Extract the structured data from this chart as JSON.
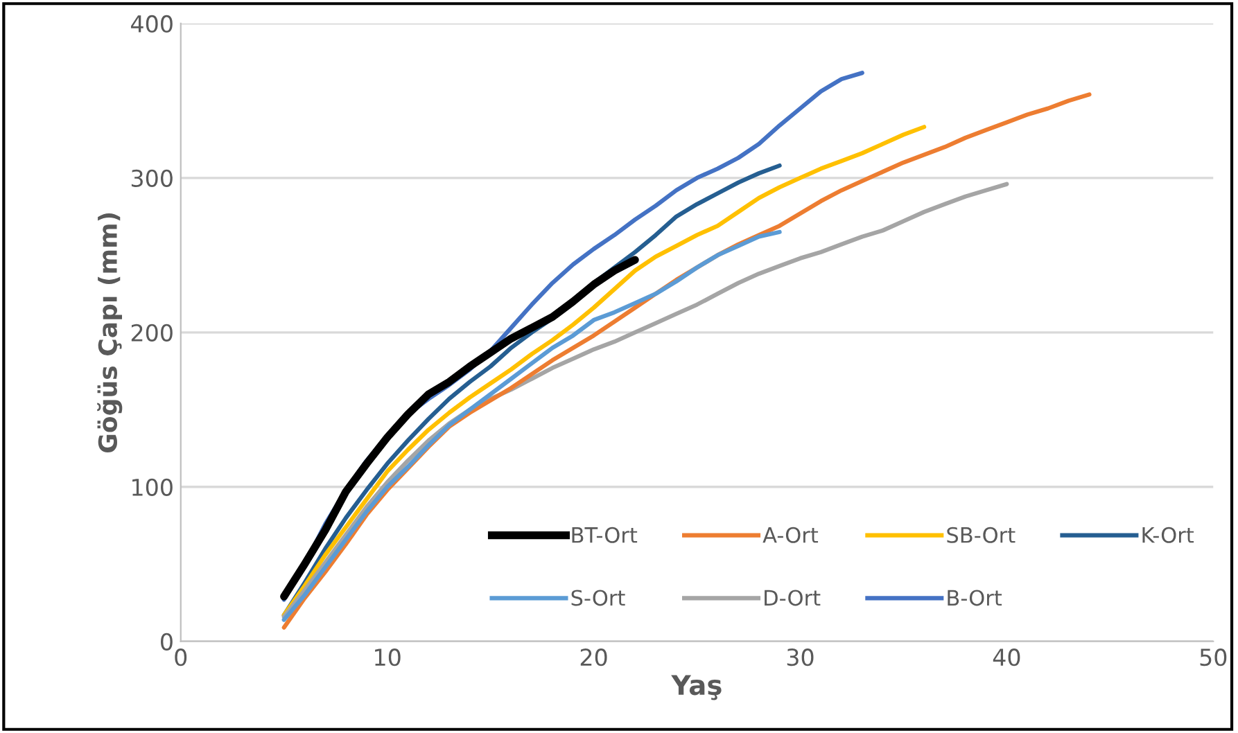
{
  "chart_data": {
    "type": "line",
    "xlabel": "Yaş",
    "ylabel": "Göğüs Çapı (mm)",
    "xlim": [
      0,
      50
    ],
    "ylim": [
      0,
      400
    ],
    "xticks": [
      0,
      10,
      20,
      30,
      40,
      50
    ],
    "yticks": [
      0,
      100,
      200,
      300,
      400
    ],
    "grid": "y",
    "legend": "bottom right",
    "marker": "none",
    "line_style": "solid",
    "series": [
      {
        "name": "BT-Ort",
        "color": "#000000",
        "x": [
          5,
          6,
          7,
          8,
          9,
          10,
          11,
          12,
          13,
          14,
          15,
          16,
          17,
          18,
          19,
          20,
          21,
          22
        ],
        "values": [
          29,
          50,
          72,
          97,
          115,
          132,
          147,
          160,
          168,
          178,
          187,
          196,
          203,
          210,
          220,
          231,
          240,
          247
        ]
      },
      {
        "name": "S-Ort",
        "color": "#5b9bd5",
        "x": [
          5,
          6,
          7,
          8,
          9,
          10,
          11,
          12,
          13,
          14,
          15,
          16,
          17,
          18,
          19,
          20,
          21,
          22,
          23,
          24,
          25,
          26,
          27,
          28,
          29
        ],
        "values": [
          14,
          30,
          48,
          66,
          84,
          100,
          113,
          127,
          140,
          150,
          160,
          170,
          180,
          190,
          198,
          208,
          213,
          219,
          225,
          233,
          242,
          250,
          256,
          262,
          265
        ]
      },
      {
        "name": "A-Ort",
        "color": "#ed7d31",
        "x": [
          5,
          6,
          7,
          8,
          9,
          10,
          11,
          12,
          13,
          14,
          15,
          16,
          17,
          18,
          19,
          20,
          21,
          22,
          23,
          24,
          25,
          26,
          27,
          28,
          29,
          30,
          31,
          32,
          33,
          34,
          35,
          36,
          37,
          38,
          39,
          40,
          41,
          42,
          43,
          44
        ],
        "values": [
          9,
          28,
          45,
          63,
          82,
          98,
          112,
          126,
          139,
          148,
          156,
          164,
          173,
          182,
          190,
          198,
          207,
          216,
          225,
          234,
          242,
          250,
          257,
          263,
          269,
          277,
          285,
          292,
          298,
          304,
          310,
          315,
          320,
          326,
          331,
          336,
          341,
          345,
          350,
          354
        ]
      },
      {
        "name": "D-Ort",
        "color": "#a5a5a5",
        "x": [
          5,
          6,
          7,
          8,
          9,
          10,
          11,
          12,
          13,
          14,
          15,
          16,
          17,
          18,
          19,
          20,
          21,
          22,
          23,
          24,
          25,
          26,
          27,
          28,
          29,
          30,
          31,
          32,
          33,
          34,
          35,
          36,
          37,
          38,
          39,
          40
        ],
        "values": [
          16,
          33,
          51,
          69,
          87,
          103,
          117,
          130,
          141,
          150,
          157,
          163,
          170,
          177,
          183,
          189,
          194,
          200,
          206,
          212,
          218,
          225,
          232,
          238,
          243,
          248,
          252,
          257,
          262,
          266,
          272,
          278,
          283,
          288,
          292,
          296
        ]
      },
      {
        "name": "SB-Ort",
        "color": "#ffc000",
        "x": [
          5,
          6,
          7,
          8,
          9,
          10,
          11,
          12,
          13,
          14,
          15,
          16,
          17,
          18,
          19,
          20,
          21,
          22,
          23,
          24,
          25,
          26,
          27,
          28,
          29,
          30,
          31,
          32,
          33,
          34,
          35,
          36
        ],
        "values": [
          17,
          36,
          56,
          74,
          92,
          110,
          124,
          137,
          148,
          158,
          167,
          176,
          186,
          195,
          205,
          216,
          228,
          240,
          249,
          256,
          263,
          269,
          278,
          287,
          294,
          300,
          306,
          311,
          316,
          322,
          328,
          333
        ]
      },
      {
        "name": "B-Ort",
        "color": "#4472c4",
        "x": [
          5,
          6,
          7,
          8,
          9,
          10,
          11,
          12,
          13,
          14,
          15,
          16,
          17,
          18,
          19,
          20,
          21,
          22,
          23,
          24,
          25,
          26,
          27,
          28,
          29,
          30,
          31,
          32,
          33
        ],
        "values": [
          27,
          50,
          76,
          98,
          117,
          133,
          147,
          157,
          166,
          176,
          188,
          203,
          218,
          232,
          244,
          254,
          263,
          273,
          282,
          292,
          300,
          306,
          313,
          322,
          334,
          345,
          356,
          364,
          368
        ]
      },
      {
        "name": "K-Ort",
        "color": "#255e91",
        "x": [
          5,
          6,
          7,
          8,
          9,
          10,
          11,
          12,
          13,
          14,
          15,
          16,
          17,
          18,
          19,
          20,
          21,
          22,
          23,
          24,
          25,
          26,
          27,
          28,
          29
        ],
        "values": [
          17,
          38,
          60,
          80,
          98,
          115,
          130,
          144,
          157,
          168,
          178,
          190,
          200,
          209,
          220,
          232,
          242,
          252,
          263,
          275,
          283,
          290,
          297,
          303,
          308
        ]
      }
    ]
  }
}
